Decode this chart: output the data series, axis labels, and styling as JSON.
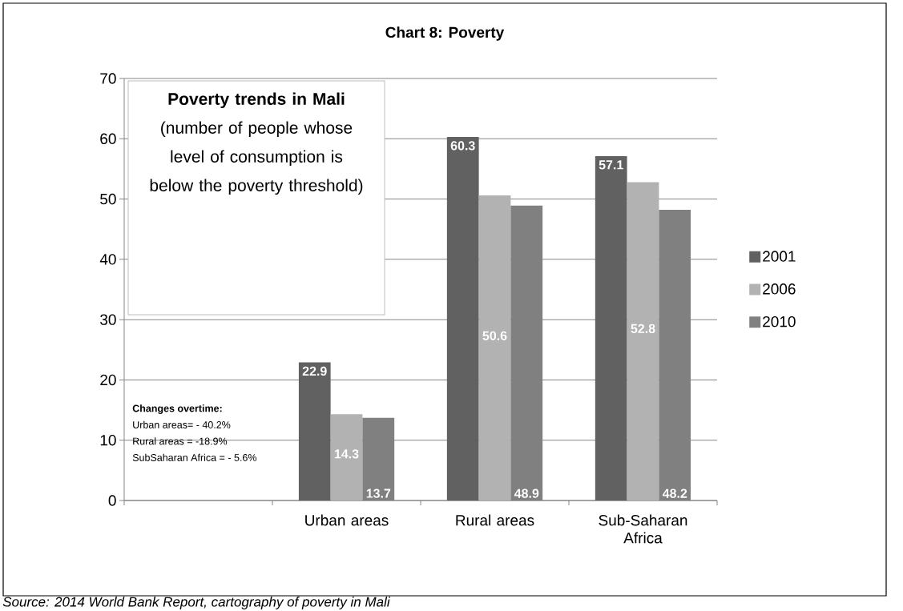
{
  "chart_data": {
    "type": "bar",
    "title": "Chart 8: Poverty",
    "categories": [
      null,
      "Urban areas",
      "Rural areas",
      "Sub-Saharan Africa"
    ],
    "series": [
      {
        "name": "2001",
        "color": "#616161",
        "values": [
          null,
          22.9,
          60.3,
          57.1
        ]
      },
      {
        "name": "2006",
        "color": "#b2b2b2",
        "values": [
          null,
          14.3,
          50.6,
          52.8
        ]
      },
      {
        "name": "2010",
        "color": "#808080",
        "values": [
          null,
          13.7,
          48.9,
          48.2
        ]
      }
    ],
    "ylim": [
      0,
      70
    ],
    "yticks": [
      0,
      10,
      20,
      30,
      40,
      50,
      60,
      70
    ],
    "grid": "y",
    "legend": "right",
    "data_labels": true,
    "annotations": [
      "**Poverty trends in Mali** (number of people whose level of consumption is below the poverty threshold)",
      "**Changes overtime:**",
      "Urban areas=  - 40.2%",
      "Rural areas = -18.9%",
      "SubSaharan Africa  = - 5.6%",
      "Source: 2014 World Bank Report, cartography of poverty in Mali"
    ]
  }
}
